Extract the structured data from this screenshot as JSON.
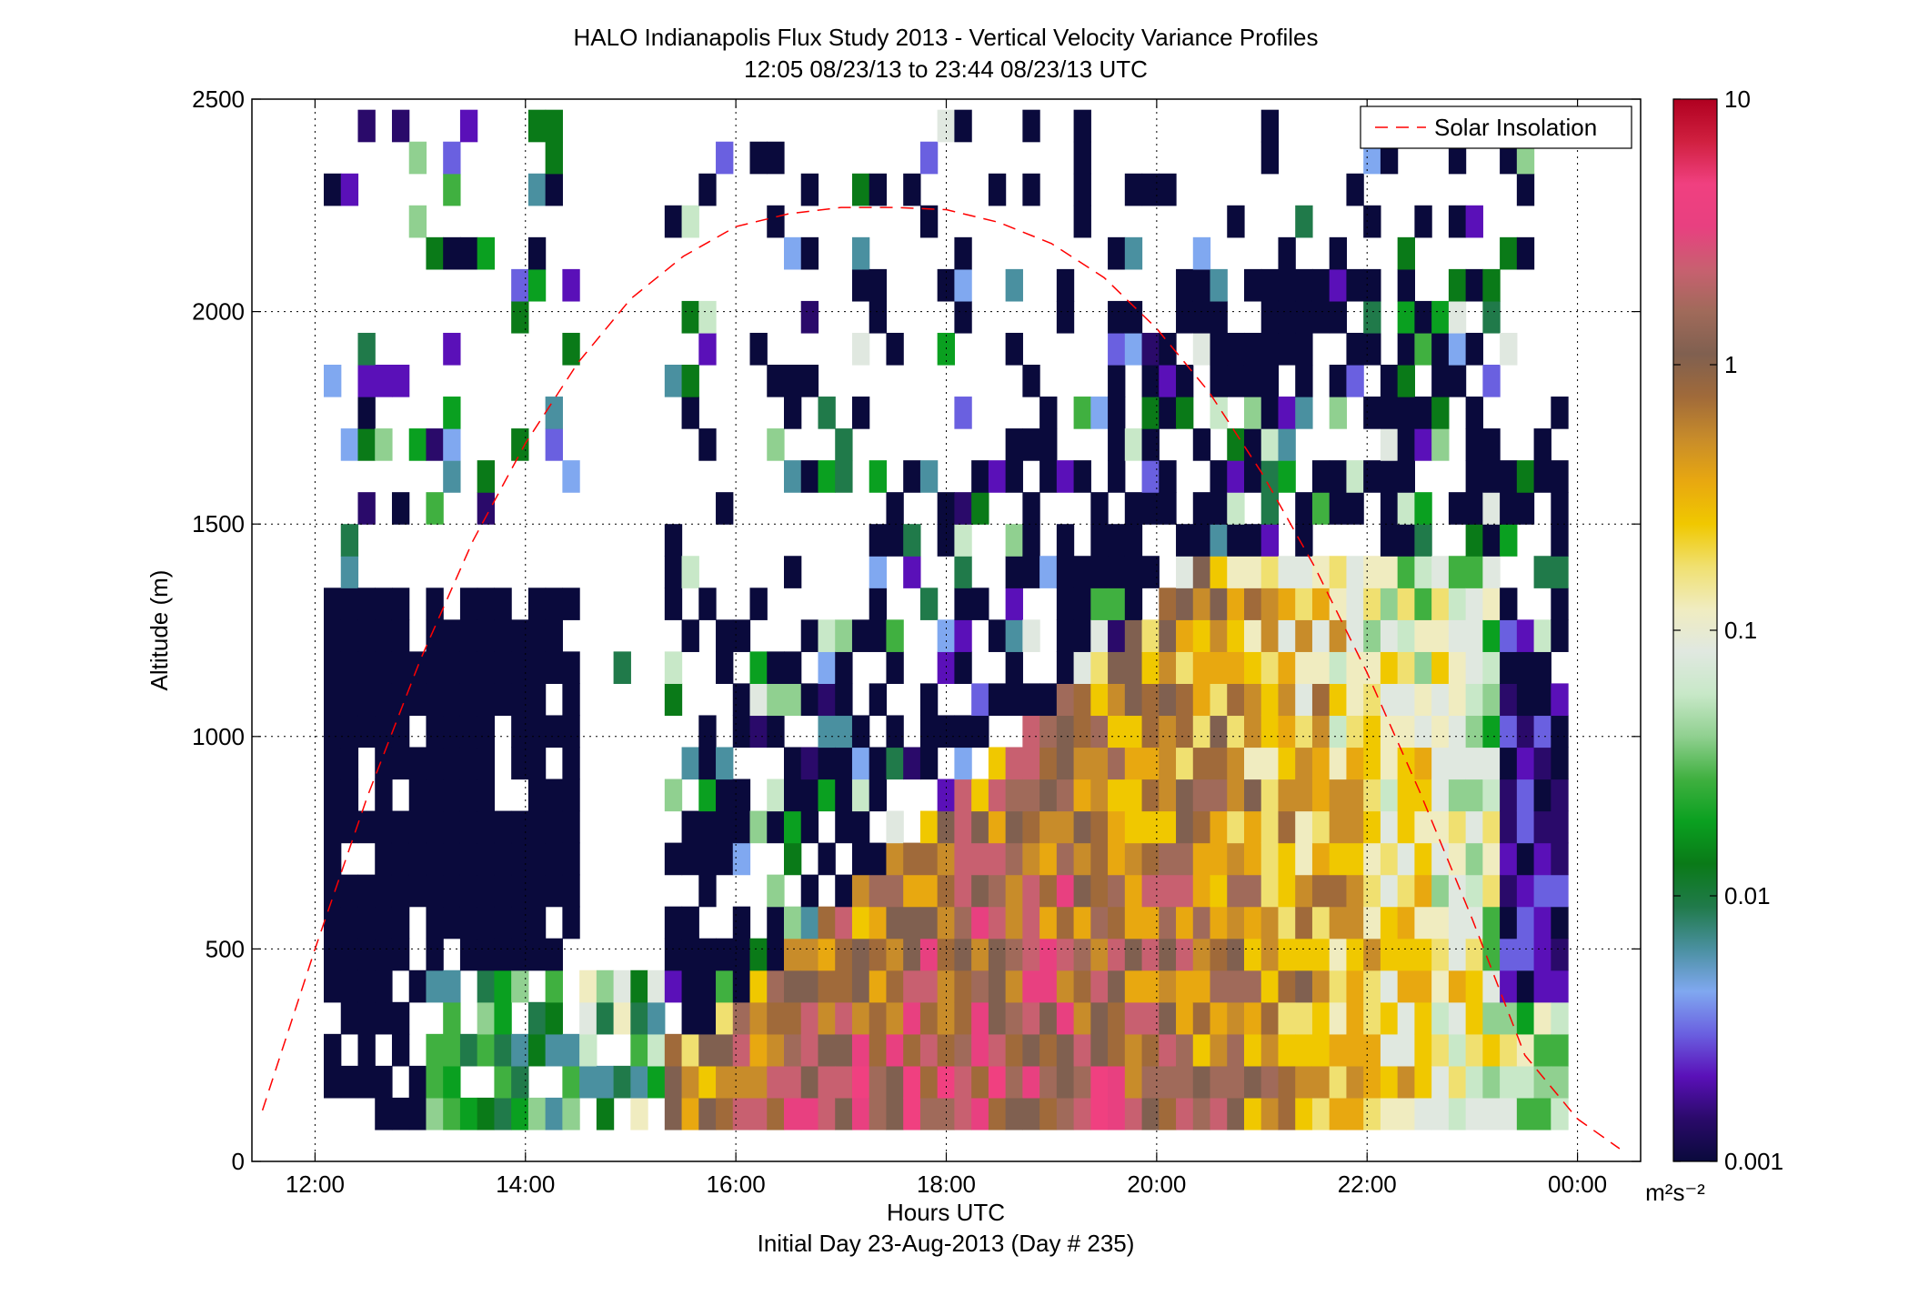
{
  "chart_data": {
    "type": "heatmap",
    "title": "HALO Indianapolis Flux Study 2013 - Vertical Velocity Variance Profiles",
    "subtitle": "12:05 08/23/13 to 23:44 08/23/13  UTC",
    "xlabel": "Hours UTC",
    "xlabel2": "Initial Day 23-Aug-2013 (Day # 235)",
    "ylabel": "Altitude (m)",
    "x_ticks": [
      {
        "label": "12:00",
        "hour": 12
      },
      {
        "label": "14:00",
        "hour": 14
      },
      {
        "label": "16:00",
        "hour": 16
      },
      {
        "label": "18:00",
        "hour": 18
      },
      {
        "label": "20:00",
        "hour": 20
      },
      {
        "label": "22:00",
        "hour": 22
      },
      {
        "label": "00:00",
        "hour": 24
      }
    ],
    "xlim_hours": [
      11.4,
      24.6
    ],
    "y_ticks": [
      {
        "label": "0",
        "value": 0
      },
      {
        "label": "500",
        "value": 500
      },
      {
        "label": "1000",
        "value": 1000
      },
      {
        "label": "1500",
        "value": 1500
      },
      {
        "label": "2000",
        "value": 2000
      },
      {
        "label": "2500",
        "value": 2500
      }
    ],
    "ylim": [
      0,
      2500
    ],
    "grid": true,
    "legend": {
      "label": "Solar Insolation",
      "position": "top-right",
      "color": "#ff0000",
      "style": "dashed"
    },
    "colorbar": {
      "scale": "log",
      "range": [
        0.001,
        10
      ],
      "unit_label": "m²s⁻²",
      "ticks": [
        {
          "label": "10",
          "value": 10
        },
        {
          "label": "1",
          "value": 1
        },
        {
          "label": "0.1",
          "value": 0.1
        },
        {
          "label": "0.01",
          "value": 0.01
        },
        {
          "label": "0.001",
          "value": 0.001
        }
      ],
      "colors": [
        "#0a0a3c",
        "#2a0a6a",
        "#5a10b8",
        "#6a60e0",
        "#80a8f0",
        "#4a90a0",
        "#207a4a",
        "#0a7a18",
        "#0aa020",
        "#40b040",
        "#90d090",
        "#c8e8c8",
        "#e0e8e0",
        "#f0ecc0",
        "#f0e070",
        "#f0c800",
        "#e8a810",
        "#c88c2a",
        "#a06a3a",
        "#806050",
        "#a06a5a",
        "#c86070",
        "#e84080",
        "#f04080",
        "#d02040",
        "#b00020"
      ]
    },
    "solar_insolation": {
      "peak_hour": 17.75,
      "peak_altitude": 2240,
      "points": [
        [
          11.5,
          120
        ],
        [
          12.0,
          500
        ],
        [
          12.5,
          860
        ],
        [
          13.0,
          1180
        ],
        [
          13.5,
          1460
        ],
        [
          14.0,
          1690
        ],
        [
          14.5,
          1880
        ],
        [
          15.0,
          2030
        ],
        [
          15.5,
          2130
        ],
        [
          16.0,
          2200
        ],
        [
          16.5,
          2230
        ],
        [
          17.0,
          2245
        ],
        [
          17.5,
          2245
        ],
        [
          18.0,
          2240
        ],
        [
          18.5,
          2210
        ],
        [
          19.0,
          2160
        ],
        [
          19.5,
          2080
        ],
        [
          20.0,
          1960
        ],
        [
          20.5,
          1810
        ],
        [
          21.0,
          1620
        ],
        [
          21.5,
          1400
        ],
        [
          22.0,
          1150
        ],
        [
          22.5,
          870
        ],
        [
          23.0,
          570
        ],
        [
          23.5,
          250
        ],
        [
          24.0,
          100
        ],
        [
          24.4,
          30
        ]
      ]
    },
    "time_bins": {
      "start_hour": 12.083,
      "end_hour": 23.733,
      "step_hours": 0.162
    },
    "altitude_bins": {
      "start_m": 75,
      "end_m": 2500,
      "step_m": 75
    },
    "profiles": [
      [
        12.08,
        [
          [
            "L",
            0,
            "#0a0a3c"
          ],
          [
            "H",
            1,
            "#0a0a3c"
          ],
          [
            "H",
            2,
            "#0a0a3c"
          ],
          [
            "H",
            3,
            "#0a0a3c"
          ],
          [
            "H",
            4,
            "#0a0a3c"
          ],
          [
            "H",
            5,
            "#0a0a3c"
          ],
          [
            "H",
            6,
            "#0a0a3c"
          ],
          [
            "H",
            7,
            "#0a0a3c"
          ],
          [
            "H",
            8,
            "#0a0a3c"
          ],
          [
            "H",
            9,
            "#0a0a3c"
          ],
          [
            "H",
            11,
            "#0a0a3c"
          ],
          [
            "H",
            13,
            "#0a0a3c"
          ],
          [
            "H",
            14,
            "#0a0a3c"
          ],
          [
            "H",
            15,
            "#0a0a3c"
          ],
          [
            "H",
            17,
            "#0a0a3c"
          ],
          [
            "H",
            19,
            "#5a10b8"
          ],
          [
            "H",
            21,
            "#90d090"
          ],
          [
            "H",
            23,
            "#0a7a18"
          ],
          [
            "H",
            28,
            "#c0c0c0"
          ],
          [
            "H",
            32,
            "#0a7a18"
          ],
          [
            "H",
            35,
            "#0a0a3c"
          ],
          [
            "H",
            38,
            "#0a0a3c"
          ]
        ]
      ]
    ]
  }
}
